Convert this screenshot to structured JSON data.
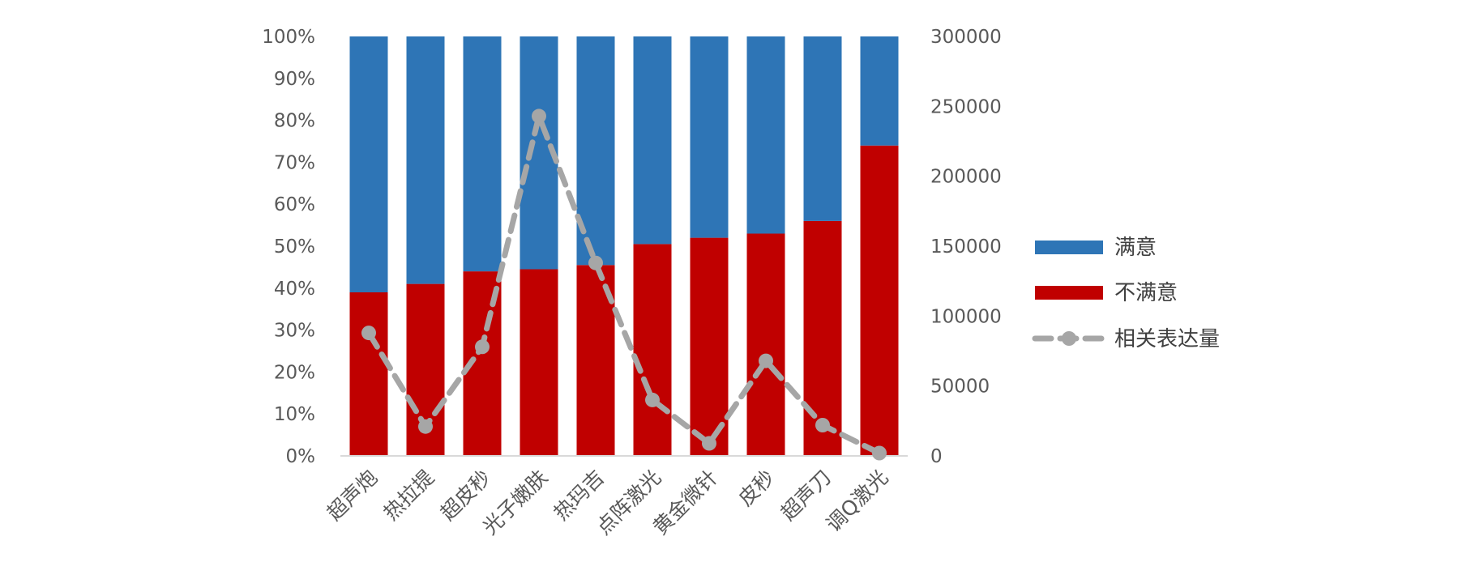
{
  "chart_data": {
    "type": "bar",
    "stacked": "percent",
    "categories": [
      "超声炮",
      "热拉提",
      "超皮秒",
      "光子嫩肤",
      "热玛吉",
      "点阵激光",
      "黄金微针",
      "皮秒",
      "超声刀",
      "调Q激光"
    ],
    "series": [
      {
        "name": "不满意",
        "type": "bar",
        "color": "#c00000",
        "values": [
          39,
          41,
          44,
          44.5,
          45.5,
          50.5,
          52,
          53,
          56,
          74
        ]
      },
      {
        "name": "满意",
        "type": "bar",
        "color": "#2e75b6",
        "values": [
          61,
          59,
          56,
          55.5,
          54.5,
          49.5,
          48,
          47,
          44,
          26
        ]
      },
      {
        "name": "相关表达量",
        "type": "line",
        "axis": "right",
        "color": "#a6a6a6",
        "line_style": "dashed",
        "marker": "circle",
        "values": [
          88000,
          21000,
          78000,
          243000,
          138000,
          40000,
          9000,
          68000,
          22000,
          2000
        ]
      }
    ],
    "left_axis": {
      "ylim": [
        0,
        100
      ],
      "ticks": [
        "0%",
        "10%",
        "20%",
        "30%",
        "40%",
        "50%",
        "60%",
        "70%",
        "80%",
        "90%",
        "100%"
      ]
    },
    "right_axis": {
      "ylim": [
        0,
        300000
      ],
      "ticks": [
        "0",
        "50000",
        "100000",
        "150000",
        "200000",
        "250000",
        "300000"
      ]
    },
    "legend": {
      "position": "right",
      "items": [
        "满意",
        "不满意",
        "相关表达量"
      ]
    },
    "grid": false
  }
}
